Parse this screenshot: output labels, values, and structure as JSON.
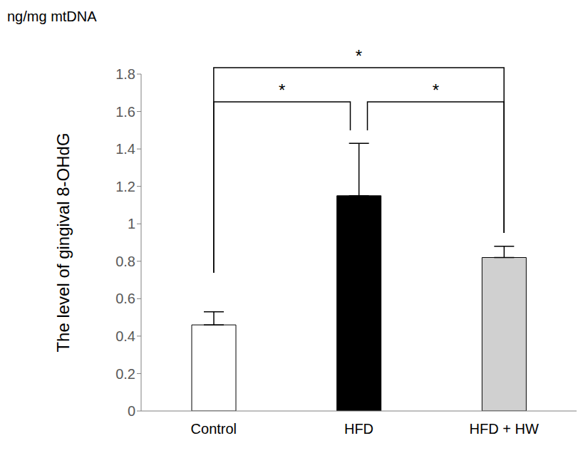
{
  "chart_data": {
    "type": "bar",
    "y_unit_label": "ng/mg mtDNA",
    "y_label": "The level of gingival 8-OHdG",
    "categories": [
      "Control",
      "HFD",
      "HFD + HW"
    ],
    "values": [
      0.46,
      1.15,
      0.82
    ],
    "errors": [
      0.07,
      0.28,
      0.06
    ],
    "colors": [
      "#ffffff",
      "#000000",
      "#d0d0d0"
    ],
    "ylim": [
      0,
      1.8
    ],
    "yticks": [
      0,
      0.2,
      0.4,
      0.6,
      0.8,
      1,
      1.2,
      1.4,
      1.6,
      1.8
    ],
    "grid": false,
    "significance": [
      {
        "from": "Control",
        "to": "HFD",
        "label": "*"
      },
      {
        "from": "HFD",
        "to": "HFD + HW",
        "label": "*"
      },
      {
        "from": "Control",
        "to": "HFD + HW",
        "label": "*"
      }
    ]
  }
}
